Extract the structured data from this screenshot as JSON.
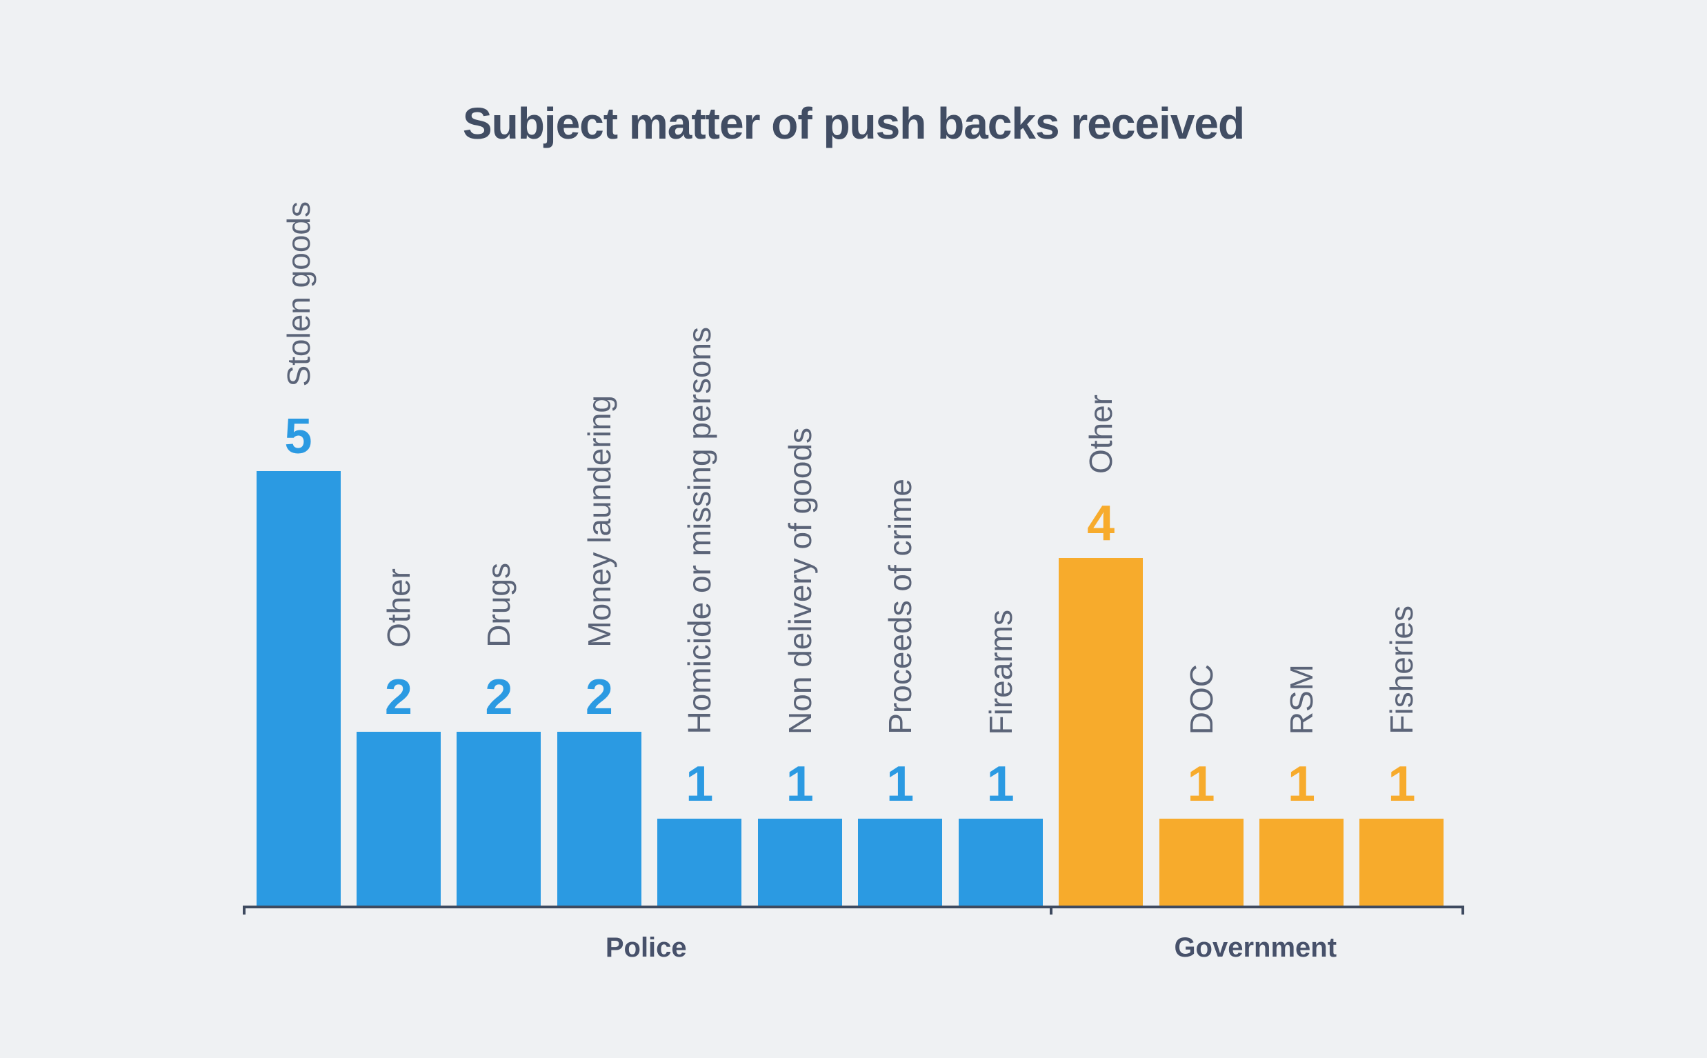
{
  "title": "Subject matter of push backs received",
  "colors": {
    "background": "#EFF1F3",
    "police_blue": "#2B9AE2",
    "government_orange": "#F7AB2C",
    "axis": "#3E4A5F",
    "title_text": "#414D63",
    "category_label_text": "#5B6478",
    "group_label_text": "#47516A"
  },
  "chart_data": {
    "type": "bar",
    "title": "Subject matter of push backs received",
    "xlabel": "",
    "ylabel": "",
    "ylim": [
      0,
      5
    ],
    "grid": false,
    "legend": "none",
    "value_labels": "above bars",
    "category_label_style": "rotated 90deg above value labels",
    "categories": [
      "Stolen goods",
      "Other",
      "Drugs",
      "Money laundering",
      "Homicide or missing persons",
      "Non delivery of goods",
      "Proceeds of crime",
      "Firearms",
      "Other",
      "DOC",
      "RSM",
      "Fisheries"
    ],
    "values": [
      5,
      2,
      2,
      2,
      1,
      1,
      1,
      1,
      4,
      1,
      1,
      1
    ],
    "groups": [
      {
        "label": "Police",
        "color": "#2B9AE2",
        "bars": [
          {
            "category": "Stolen goods",
            "value": 5
          },
          {
            "category": "Other",
            "value": 2
          },
          {
            "category": "Drugs",
            "value": 2
          },
          {
            "category": "Money laundering",
            "value": 2
          },
          {
            "category": "Homicide or missing persons",
            "value": 1
          },
          {
            "category": "Non delivery of goods",
            "value": 1
          },
          {
            "category": "Proceeds of crime",
            "value": 1
          },
          {
            "category": "Firearms",
            "value": 1
          }
        ]
      },
      {
        "label": "Government",
        "color": "#F7AB2C",
        "bars": [
          {
            "category": "Other",
            "value": 4
          },
          {
            "category": "DOC",
            "value": 1
          },
          {
            "category": "RSM",
            "value": 1
          },
          {
            "category": "Fisheries",
            "value": 1
          }
        ]
      }
    ]
  }
}
